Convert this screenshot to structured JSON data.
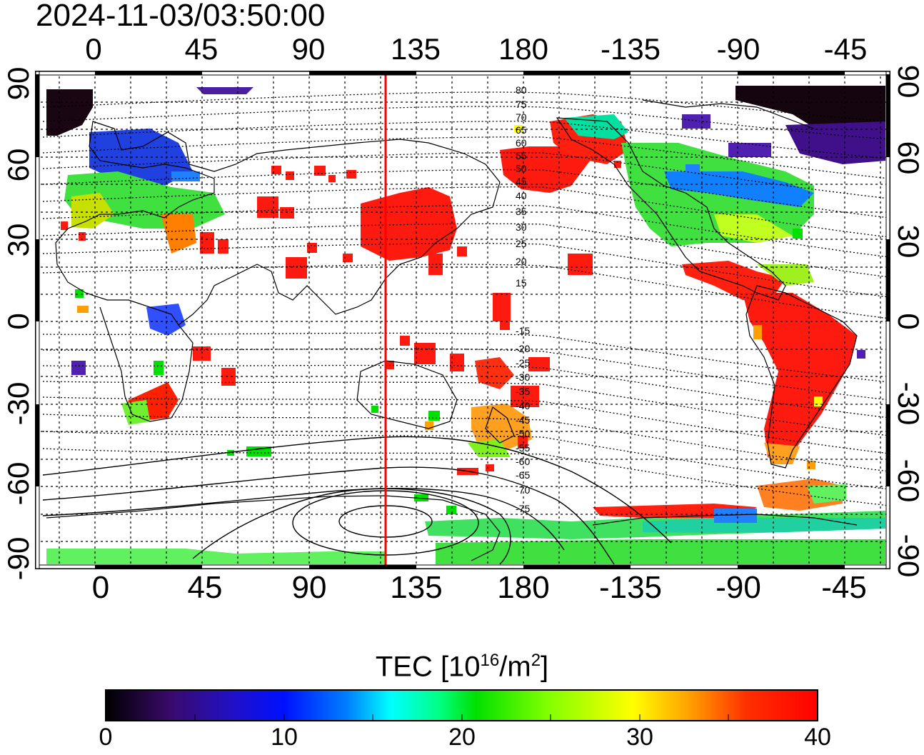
{
  "map": {
    "timestamp": "2024-11-03/03:50:00",
    "longitude_labels_top": [
      "0",
      "45",
      "90",
      "135",
      "180",
      "-135",
      "-90",
      "-45"
    ],
    "longitude_labels_bottom": [
      "0",
      "45",
      "90",
      "135",
      "180",
      "-135",
      "-90",
      "-45"
    ],
    "latitude_labels_left": [
      "90",
      "60",
      "30",
      "0",
      "-30",
      "-60",
      "-90"
    ],
    "latitude_labels_right": [
      "90",
      "60",
      "30",
      "0",
      "-30",
      "-60",
      "-90"
    ],
    "longitude_values": [
      0,
      45,
      90,
      135,
      180,
      225,
      270,
      315
    ],
    "latitude_values": [
      90,
      60,
      30,
      0,
      -30,
      -60,
      -90
    ],
    "lon_range": [
      -20,
      340
    ],
    "lat_range": [
      -90,
      90
    ],
    "terminator_longitude": 121,
    "magnetic_contour_labels": [
      "80",
      "75",
      "70",
      "65",
      "60",
      "55",
      "50",
      "45",
      "40",
      "35",
      "30",
      "25",
      "20",
      "15",
      "-15",
      "-20",
      "-25",
      "-30",
      "-35",
      "-40",
      "-45",
      "-50",
      "-55",
      "-60",
      "-65",
      "-70",
      "-75"
    ],
    "grid": true
  },
  "colorbar": {
    "title_main": "TEC  [10",
    "title_exp": "16",
    "title_mid": "/m",
    "title_exp2": "2",
    "title_end": "]",
    "tick_labels": [
      "0",
      "10",
      "20",
      "30",
      "40"
    ],
    "range": [
      0,
      40
    ],
    "colors": [
      "#000000",
      "#3a0a6a",
      "#1010c8",
      "#0050ff",
      "#00c8ff",
      "#00ff80",
      "#40ff00",
      "#c8ff00",
      "#ffff00",
      "#ffa000",
      "#ff3000",
      "#ff0000"
    ]
  },
  "colors": {
    "terminator": "#ff0000",
    "coast": "#000000",
    "frame": "#000000"
  }
}
